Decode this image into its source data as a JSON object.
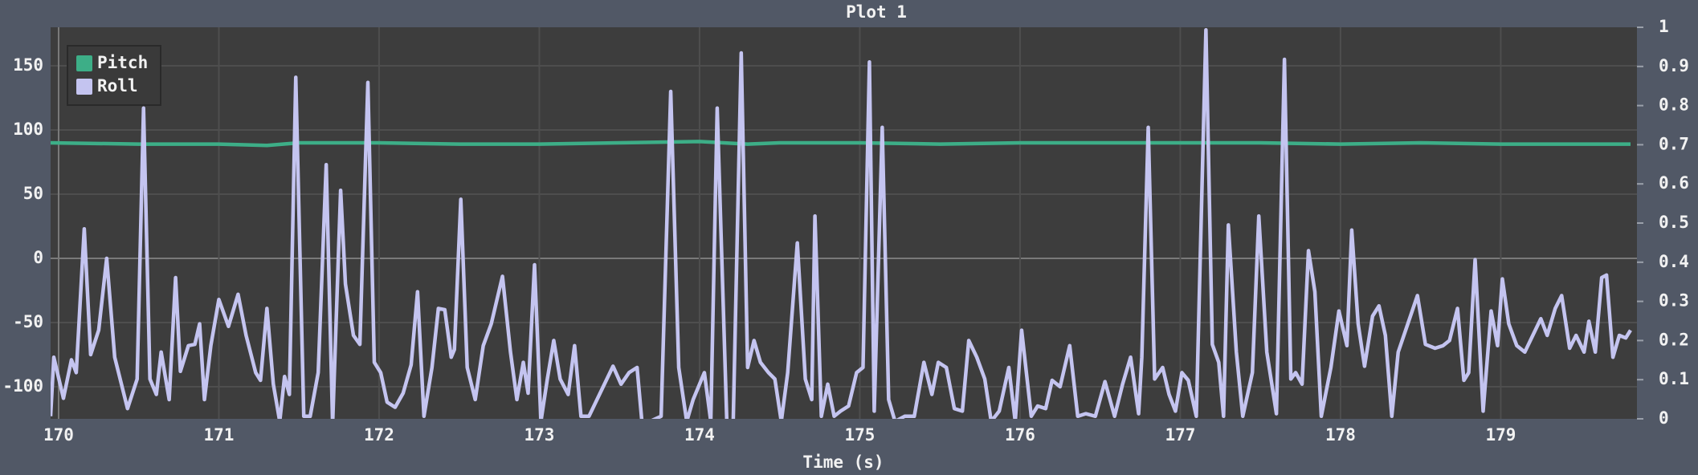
{
  "chart_data": {
    "type": "line",
    "title": "Plot 1",
    "xlabel": "Time (s)",
    "xlim": [
      169.95,
      179.85
    ],
    "ylim": [
      -125,
      180
    ],
    "y2lim": [
      0,
      1
    ],
    "xticks": [
      170,
      171,
      172,
      173,
      174,
      175,
      176,
      177,
      178,
      179
    ],
    "yticks": [
      -100,
      -50,
      0,
      50,
      100,
      150
    ],
    "y2ticks": [
      0,
      0.1,
      0.2,
      0.3,
      0.4,
      0.5,
      0.6,
      0.7,
      0.8,
      0.9,
      1
    ],
    "grid": true,
    "legend": "upper left",
    "series": [
      {
        "name": "Pitch",
        "color": "#3dae87",
        "x": [
          169.95,
          170.5,
          171.0,
          171.3,
          171.5,
          172.0,
          172.5,
          173.0,
          173.5,
          174.0,
          174.3,
          174.5,
          175.0,
          175.5,
          176.0,
          176.5,
          177.0,
          177.5,
          178.0,
          178.5,
          179.0,
          179.5,
          179.81
        ],
        "values": [
          90,
          89,
          89,
          88,
          90,
          90,
          89,
          89,
          90,
          91,
          89,
          90,
          90,
          89,
          90,
          90,
          90,
          90,
          89,
          90,
          89,
          89,
          89
        ]
      },
      {
        "name": "Roll",
        "color": "#c4c4f0",
        "x": [
          169.95,
          169.97,
          170.03,
          170.08,
          170.11,
          170.16,
          170.2,
          170.25,
          170.3,
          170.35,
          170.43,
          170.49,
          170.53,
          170.57,
          170.61,
          170.64,
          170.69,
          170.73,
          170.76,
          170.81,
          170.85,
          170.88,
          170.91,
          170.95,
          171.0,
          171.06,
          171.12,
          171.17,
          171.23,
          171.26,
          171.3,
          171.34,
          171.38,
          171.41,
          171.44,
          171.48,
          171.53,
          171.57,
          171.62,
          171.67,
          171.71,
          171.76,
          171.79,
          171.84,
          171.88,
          171.93,
          171.97,
          172.01,
          172.05,
          172.1,
          172.15,
          172.2,
          172.24,
          172.28,
          172.33,
          172.37,
          172.41,
          172.45,
          172.47,
          172.51,
          172.55,
          172.6,
          172.65,
          172.7,
          172.77,
          172.82,
          172.86,
          172.9,
          172.93,
          172.97,
          173.01,
          173.05,
          173.09,
          173.13,
          173.18,
          173.22,
          173.26,
          173.31,
          173.46,
          173.51,
          173.56,
          173.61,
          173.64,
          173.69,
          173.76,
          173.82,
          173.87,
          173.92,
          173.96,
          174.03,
          174.07,
          174.11,
          174.17,
          174.21,
          174.26,
          174.3,
          174.34,
          174.38,
          174.43,
          174.47,
          174.51,
          174.55,
          174.61,
          174.66,
          174.7,
          174.72,
          174.76,
          174.8,
          174.84,
          174.88,
          174.93,
          174.98,
          175.02,
          175.06,
          175.09,
          175.14,
          175.18,
          175.22,
          175.28,
          175.34,
          175.4,
          175.45,
          175.49,
          175.54,
          175.59,
          175.64,
          175.68,
          175.73,
          175.78,
          175.82,
          175.87,
          175.93,
          175.97,
          176.01,
          176.07,
          176.11,
          176.16,
          176.2,
          176.25,
          176.31,
          176.36,
          176.41,
          176.47,
          176.53,
          176.59,
          176.64,
          176.69,
          176.74,
          176.76,
          176.8,
          176.84,
          176.89,
          176.93,
          176.97,
          177.01,
          177.05,
          177.1,
          177.16,
          177.2,
          177.24,
          177.27,
          177.3,
          177.35,
          177.39,
          177.45,
          177.49,
          177.54,
          177.6,
          177.65,
          177.69,
          177.72,
          177.76,
          177.8,
          177.84,
          177.88,
          177.94,
          177.99,
          178.04,
          178.07,
          178.11,
          178.15,
          178.2,
          178.24,
          178.28,
          178.32,
          178.36,
          178.42,
          178.48,
          178.53,
          178.59,
          178.64,
          178.68,
          178.73,
          178.77,
          178.8,
          178.84,
          178.89,
          178.94,
          178.98,
          179.01,
          179.05,
          179.1,
          179.15,
          179.2,
          179.25,
          179.29,
          179.34,
          179.38,
          179.43,
          179.47,
          179.52,
          179.55,
          179.59,
          179.63,
          179.66,
          179.7,
          179.74,
          179.78,
          179.81
        ],
        "values": [
          -123,
          -77,
          -109,
          -79,
          -89,
          23,
          -75,
          -56,
          0,
          -77,
          -117,
          -94,
          117,
          -94,
          -106,
          -73,
          -110,
          -15,
          -88,
          -68,
          -67,
          -51,
          -110,
          -68,
          -32,
          -53,
          -28,
          -60,
          -89,
          -95,
          -39,
          -98,
          -127,
          -92,
          -106,
          141,
          -123,
          -123,
          -89,
          73,
          -129,
          53,
          -20,
          -60,
          -67,
          137,
          -81,
          -89,
          -112,
          -116,
          -105,
          -83,
          -26,
          -123,
          -85,
          -39,
          -40,
          -77,
          -71,
          46,
          -85,
          -110,
          -68,
          -51,
          -14,
          -73,
          -110,
          -81,
          -105,
          -5,
          -127,
          -94,
          -64,
          -94,
          -106,
          -68,
          -123,
          -123,
          -84,
          -98,
          -89,
          -85,
          -127,
          -127,
          -123,
          130,
          -85,
          -127,
          -110,
          -89,
          -127,
          117,
          -127,
          -127,
          160,
          -85,
          -64,
          -81,
          -89,
          -94,
          -127,
          -89,
          12,
          -94,
          -110,
          33,
          -123,
          -98,
          -123,
          -119,
          -115,
          -89,
          -85,
          153,
          -119,
          102,
          -110,
          -127,
          -123,
          -123,
          -81,
          -106,
          -81,
          -85,
          -117,
          -119,
          -64,
          -77,
          -94,
          -127,
          -119,
          -85,
          -127,
          -56,
          -123,
          -115,
          -117,
          -95,
          -100,
          -68,
          -123,
          -121,
          -123,
          -96,
          -123,
          -98,
          -77,
          -121,
          -77,
          102,
          -94,
          -85,
          -106,
          -119,
          -89,
          -95,
          -123,
          178,
          -67,
          -81,
          -123,
          26,
          -73,
          -123,
          -89,
          33,
          -73,
          -121,
          155,
          -94,
          -89,
          -98,
          6,
          -26,
          -123,
          -85,
          -41,
          -68,
          22,
          -51,
          -84,
          -45,
          -37,
          -60,
          -123,
          -73,
          -51,
          -29,
          -67,
          -70,
          -68,
          -64,
          -39,
          -95,
          -89,
          -1,
          -119,
          -41,
          -68,
          -16,
          -51,
          -68,
          -73,
          -60,
          -47,
          -60,
          -39,
          -29,
          -70,
          -60,
          -73,
          -49,
          -73,
          -15,
          -13,
          -77,
          -60,
          -62,
          -56
        ]
      }
    ]
  }
}
